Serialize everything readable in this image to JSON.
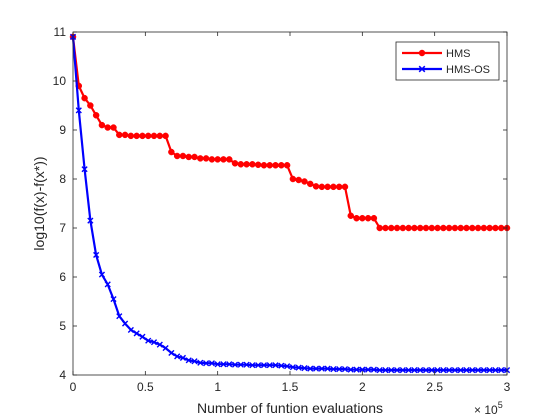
{
  "chart_data": {
    "type": "line",
    "title": "",
    "xlabel": "Number of funtion evaluations",
    "ylabel": "log10(f(x)-f(x*))",
    "x_exponent_base": "× 10",
    "x_exponent_power": "5",
    "xlim": [
      0,
      3
    ],
    "ylim": [
      4,
      11
    ],
    "x_ticks": [
      0,
      0.5,
      1,
      1.5,
      2,
      2.5,
      3
    ],
    "x_tick_labels": [
      "0",
      "0.5",
      "1",
      "1.5",
      "2",
      "2.5",
      "3"
    ],
    "y_ticks": [
      4,
      5,
      6,
      7,
      8,
      9,
      10,
      11
    ],
    "y_tick_labels": [
      "4",
      "5",
      "6",
      "7",
      "8",
      "9",
      "10",
      "11"
    ],
    "grid": false,
    "legend_position": "top-right",
    "series": [
      {
        "name": "HMS",
        "color": "#ff0000",
        "marker": "circle",
        "x": [
          0,
          0.04,
          0.08,
          0.12,
          0.16,
          0.2,
          0.24,
          0.28,
          0.32,
          0.36,
          0.4,
          0.44,
          0.48,
          0.52,
          0.56,
          0.6,
          0.64,
          0.68,
          0.72,
          0.76,
          0.8,
          0.84,
          0.88,
          0.92,
          0.96,
          1,
          1.04,
          1.08,
          1.12,
          1.16,
          1.2,
          1.24,
          1.28,
          1.32,
          1.36,
          1.4,
          1.44,
          1.48,
          1.52,
          1.56,
          1.6,
          1.64,
          1.68,
          1.72,
          1.76,
          1.8,
          1.84,
          1.88,
          1.92,
          1.96,
          2,
          2.04,
          2.08,
          2.12,
          2.16,
          2.2,
          2.24,
          2.28,
          2.32,
          2.36,
          2.4,
          2.44,
          2.48,
          2.52,
          2.56,
          2.6,
          2.64,
          2.68,
          2.72,
          2.76,
          2.8,
          2.84,
          2.88,
          2.92,
          2.96,
          3
        ],
        "y": [
          10.9,
          9.9,
          9.65,
          9.5,
          9.3,
          9.1,
          9.05,
          9.05,
          8.9,
          8.9,
          8.88,
          8.88,
          8.88,
          8.88,
          8.88,
          8.88,
          8.88,
          8.55,
          8.47,
          8.47,
          8.45,
          8.45,
          8.42,
          8.42,
          8.4,
          8.4,
          8.4,
          8.4,
          8.32,
          8.3,
          8.3,
          8.3,
          8.29,
          8.28,
          8.28,
          8.28,
          8.28,
          8.28,
          8.0,
          7.98,
          7.95,
          7.9,
          7.85,
          7.84,
          7.84,
          7.84,
          7.84,
          7.84,
          7.25,
          7.2,
          7.2,
          7.2,
          7.2,
          7.0,
          7.0,
          7.0,
          7.0,
          7.0,
          7.0,
          7.0,
          7.0,
          7.0,
          7.0,
          7.0,
          7.0,
          7.0,
          7.0,
          7.0,
          7.0,
          7.0,
          7.0,
          7.0,
          7.0,
          7.0,
          7.0,
          7.0
        ]
      },
      {
        "name": "HMS-OS",
        "color": "#0000ff",
        "marker": "x",
        "x": [
          0,
          0.04,
          0.08,
          0.12,
          0.16,
          0.2,
          0.24,
          0.28,
          0.32,
          0.36,
          0.4,
          0.44,
          0.48,
          0.52,
          0.56,
          0.6,
          0.64,
          0.68,
          0.72,
          0.76,
          0.8,
          0.84,
          0.88,
          0.92,
          0.96,
          1,
          1.04,
          1.08,
          1.12,
          1.16,
          1.2,
          1.24,
          1.28,
          1.32,
          1.36,
          1.4,
          1.44,
          1.48,
          1.52,
          1.56,
          1.6,
          1.64,
          1.68,
          1.72,
          1.76,
          1.8,
          1.84,
          1.88,
          1.92,
          1.96,
          2,
          2.04,
          2.08,
          2.12,
          2.16,
          2.2,
          2.24,
          2.28,
          2.32,
          2.36,
          2.4,
          2.44,
          2.48,
          2.52,
          2.56,
          2.6,
          2.64,
          2.68,
          2.72,
          2.76,
          2.8,
          2.84,
          2.88,
          2.92,
          2.96,
          3
        ],
        "y": [
          10.9,
          9.4,
          8.2,
          7.15,
          6.45,
          6.05,
          5.85,
          5.55,
          5.2,
          5.05,
          4.92,
          4.85,
          4.78,
          4.7,
          4.67,
          4.62,
          4.55,
          4.45,
          4.38,
          4.35,
          4.3,
          4.28,
          4.25,
          4.24,
          4.24,
          4.22,
          4.22,
          4.22,
          4.21,
          4.21,
          4.21,
          4.2,
          4.2,
          4.2,
          4.2,
          4.2,
          4.19,
          4.18,
          4.16,
          4.15,
          4.14,
          4.13,
          4.13,
          4.13,
          4.13,
          4.12,
          4.12,
          4.12,
          4.11,
          4.11,
          4.11,
          4.11,
          4.11,
          4.1,
          4.1,
          4.1,
          4.1,
          4.1,
          4.1,
          4.1,
          4.1,
          4.1,
          4.1,
          4.1,
          4.1,
          4.1,
          4.1,
          4.1,
          4.1,
          4.1,
          4.1,
          4.1,
          4.1,
          4.1,
          4.1,
          4.1
        ]
      }
    ]
  }
}
